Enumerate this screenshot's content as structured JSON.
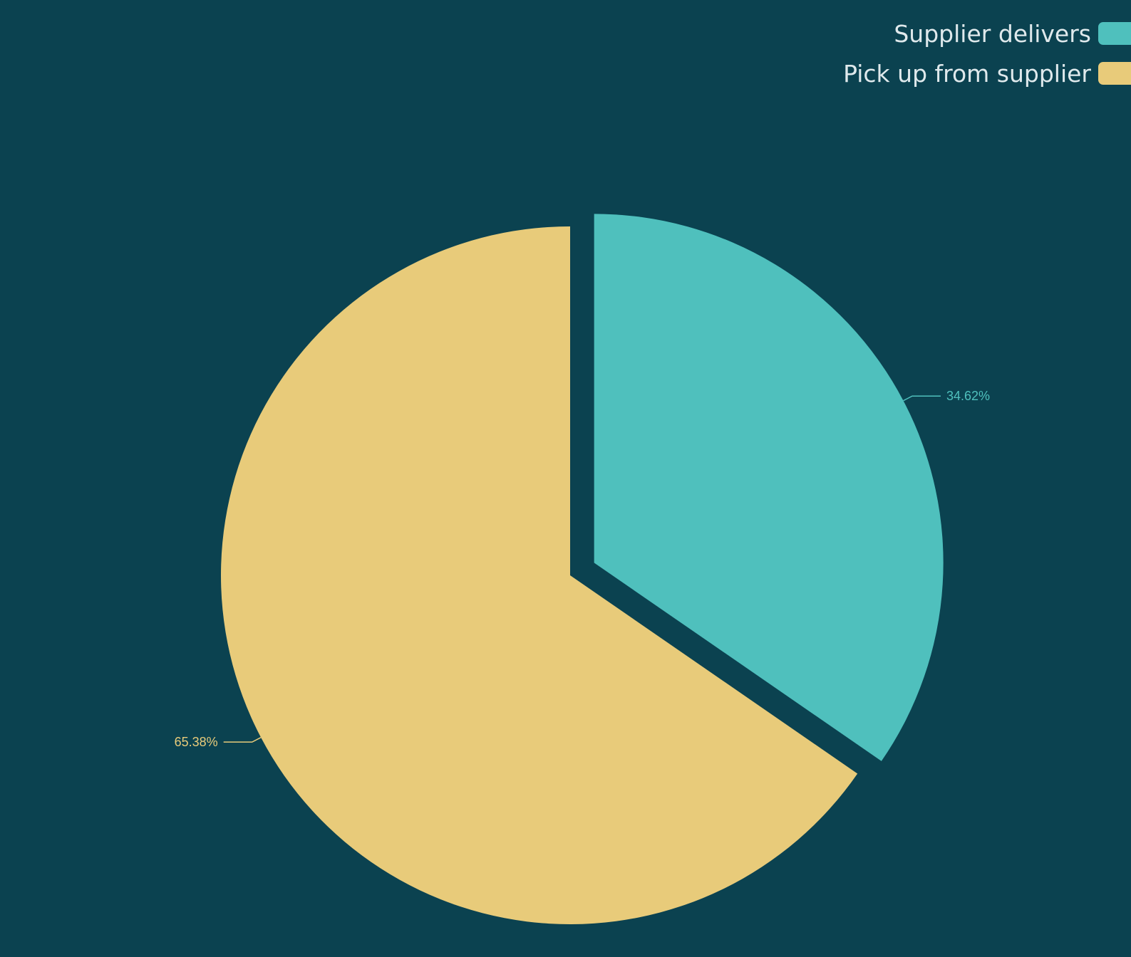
{
  "page": {
    "background": "#0b4250"
  },
  "chart_data": {
    "type": "pie",
    "title": "",
    "categories": [
      "Supplier delivers",
      "Pick up from supplier"
    ],
    "values": [
      34.62,
      65.38
    ],
    "unit": "%",
    "data_labels": [
      "34.62%",
      "65.38%"
    ],
    "colors": [
      "#4fc0bd",
      "#e8cb7a"
    ],
    "exploded": [
      "Supplier delivers"
    ],
    "start": "12 o'clock, clockwise",
    "legend": {
      "position": "top-right",
      "entries": [
        {
          "label": "Supplier delivers",
          "color": "#4fc0bd"
        },
        {
          "label": "Pick up from supplier",
          "color": "#e8cb7a"
        }
      ]
    }
  }
}
